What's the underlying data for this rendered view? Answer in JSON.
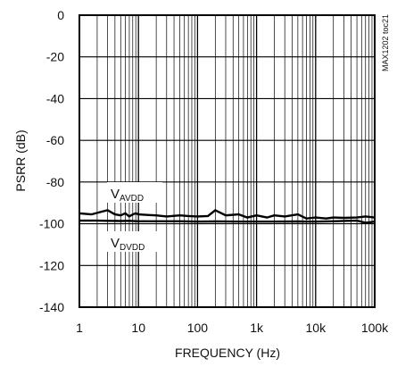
{
  "chart_data": {
    "type": "line",
    "xlabel": "FREQUENCY (Hz)",
    "ylabel": "PSRR (dB)",
    "x_scale": "log",
    "xlim": [
      1,
      100000
    ],
    "ylim": [
      -140,
      0
    ],
    "x_tick_labels": [
      "1",
      "10",
      "100",
      "1k",
      "10k",
      "100k"
    ],
    "y_tick_labels": [
      "0",
      "-20",
      "-40",
      "-60",
      "-80",
      "-100",
      "-120",
      "-140"
    ],
    "y_ticks": [
      0,
      -20,
      -40,
      -60,
      -80,
      -100,
      -120,
      -140
    ],
    "grid": true,
    "chart_id": "MAX1202 toc21",
    "series": [
      {
        "name": "AVDD",
        "label_main": "V",
        "label_sub": "AVDD",
        "x": [
          1,
          1.6,
          2,
          3,
          4,
          5,
          6,
          7,
          8,
          9,
          10,
          15,
          20,
          30,
          50,
          70,
          100,
          150,
          200,
          300,
          500,
          700,
          1000,
          1500,
          2000,
          3000,
          5000,
          7000,
          10000,
          15000,
          20000,
          30000,
          50000,
          70000,
          100000
        ],
        "y": [
          -95,
          -95.5,
          -94.8,
          -93.5,
          -95.5,
          -96,
          -95,
          -96.5,
          -95.5,
          -95,
          -95.5,
          -95.8,
          -96,
          -96.5,
          -96,
          -96.3,
          -96.5,
          -96.3,
          -93.5,
          -96,
          -95.5,
          -97,
          -96,
          -97,
          -96,
          -96.5,
          -95.5,
          -97.5,
          -97,
          -97.5,
          -97,
          -97.2,
          -97,
          -96.5,
          -97
        ]
      },
      {
        "name": "DVDD",
        "label_main": "V",
        "label_sub": "DVDD",
        "x": [
          1,
          2,
          3,
          5,
          7,
          10,
          20,
          50,
          100,
          200,
          500,
          1000,
          2000,
          5000,
          7000,
          10000,
          20000,
          50000,
          70000,
          100000
        ],
        "y": [
          -98.5,
          -98.5,
          -98.6,
          -98.7,
          -98.6,
          -98.8,
          -98.8,
          -98.8,
          -99,
          -98.9,
          -99,
          -99,
          -99,
          -98.9,
          -99,
          -99,
          -98.8,
          -98.5,
          -99.5,
          -99
        ]
      }
    ]
  }
}
